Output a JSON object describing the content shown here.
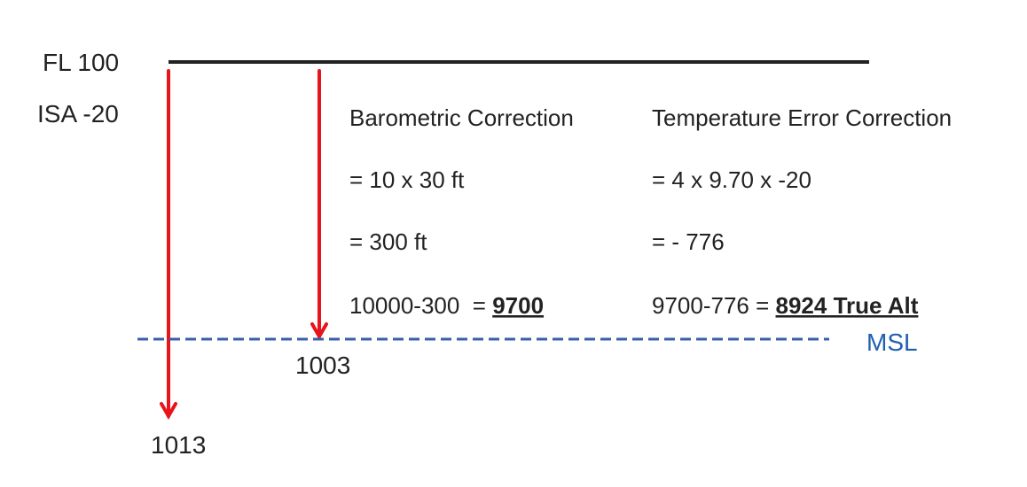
{
  "diagram": {
    "flight_level": "FL 100",
    "isa": "ISA -20",
    "msl": "MSL",
    "pressure_low": "1003",
    "pressure_high": "1013",
    "barometric": {
      "title": "Barometric Correction",
      "lines": [
        "= 10 x 30 ft",
        "= 300 ft"
      ],
      "result_prefix": "10000-300  = ",
      "result": "9700"
    },
    "temperature": {
      "title": "Temperature Error Correction",
      "lines": [
        "= 4 x 9.70 x -20",
        "= - 776"
      ],
      "result_prefix": "9700-776 = ",
      "result": "8924 True Alt"
    }
  }
}
